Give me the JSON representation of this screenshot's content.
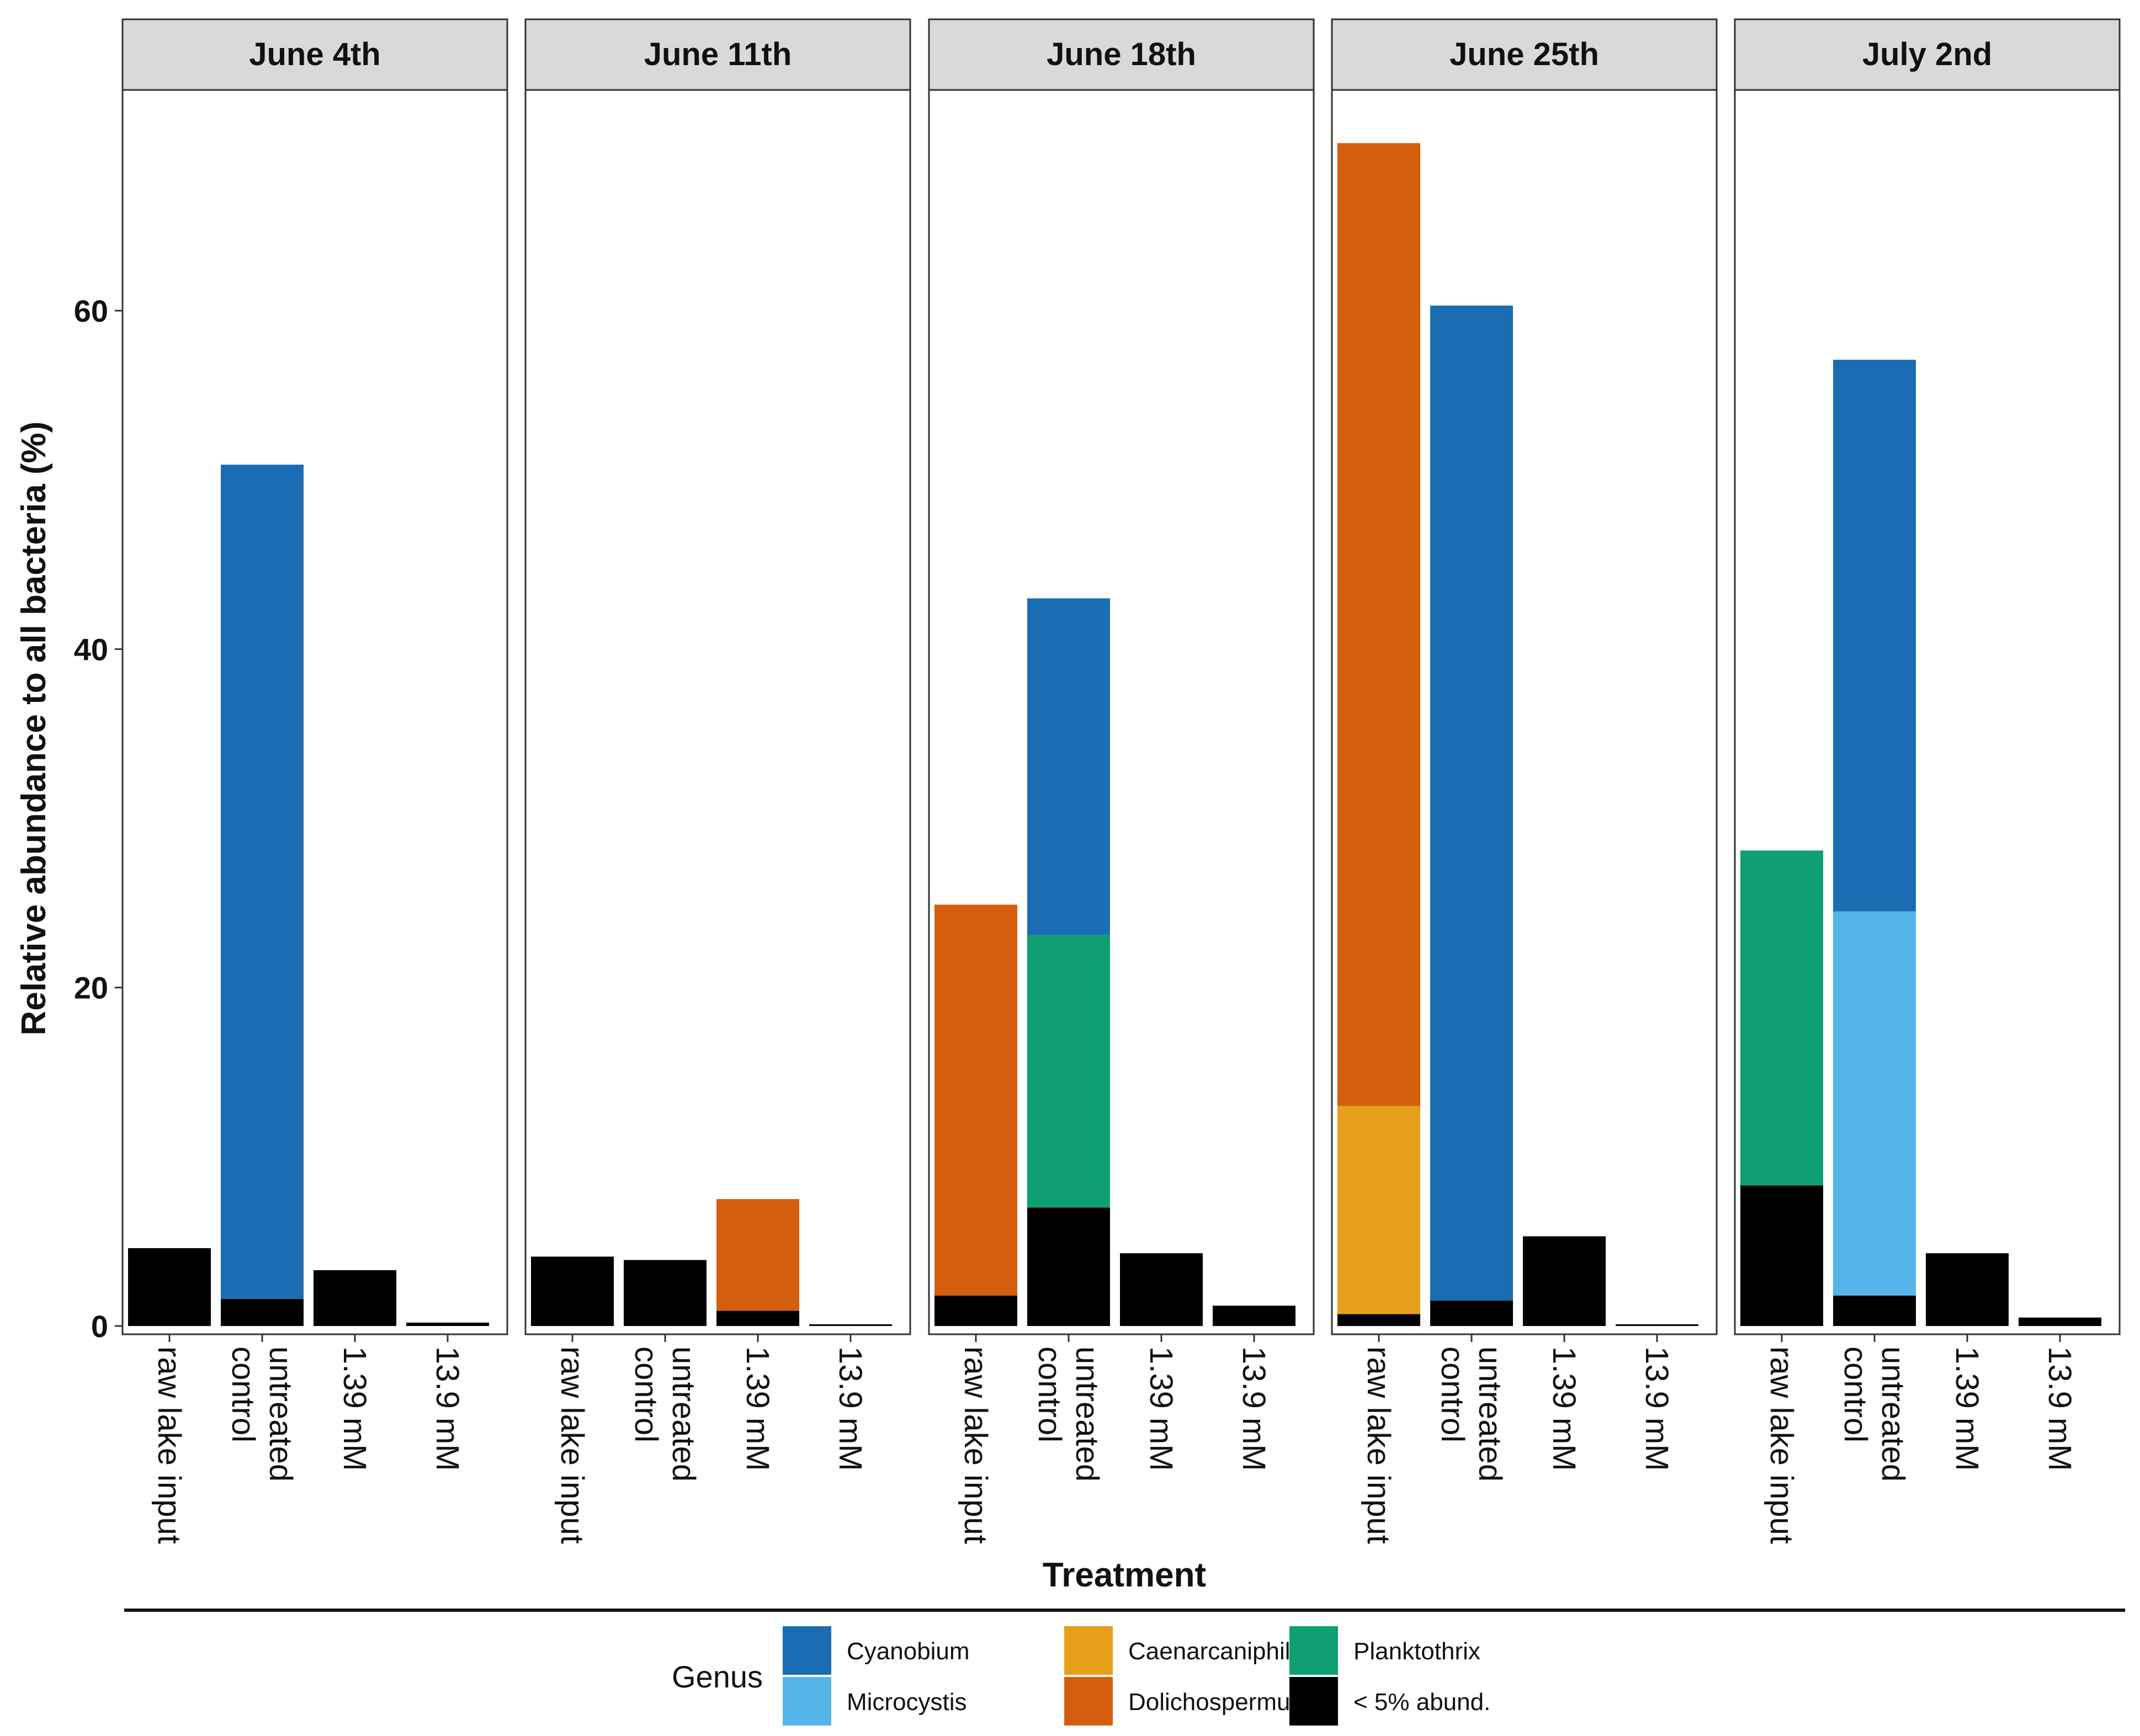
{
  "chart_data": {
    "type": "bar",
    "stacked": true,
    "title": "",
    "xlabel": "Treatment",
    "ylabel": "Relative abundance to all bacteria (%)",
    "ylim": [
      0,
      70
    ],
    "yticks": [
      0,
      20,
      40,
      60
    ],
    "panels": [
      "June 4th",
      "June 11th",
      "June 18th",
      "June 25th",
      "July 2nd"
    ],
    "categories": [
      "raw lake input",
      "untreated control",
      "1.39 mM",
      "13.9 mM"
    ],
    "legend": {
      "title": "Genus",
      "position": "bottom",
      "entries": [
        {
          "name": "Cyanobium",
          "color": "#1B6DB3"
        },
        {
          "name": "Microcystis",
          "color": "#55B5E8"
        },
        {
          "name": "Caenarcaniphilales",
          "color": "#E69F18"
        },
        {
          "name": "Dolichospermum",
          "color": "#D45E0E"
        },
        {
          "name": "Planktothrix",
          "color": "#0E9F74"
        },
        {
          "name": "< 5% abund.",
          "color": "#000000"
        }
      ]
    },
    "series": [
      {
        "name": "< 5% abund.",
        "color": "#000000",
        "values": [
          [
            4.6,
            1.6,
            3.3,
            0.2
          ],
          [
            4.1,
            3.9,
            0.9,
            0.1
          ],
          [
            1.8,
            7.0,
            4.3,
            1.2
          ],
          [
            0.7,
            1.5,
            5.3,
            0.1
          ],
          [
            8.3,
            1.8,
            4.3,
            0.5
          ]
        ]
      },
      {
        "name": "Caenarcaniphilales",
        "color": "#E69F18",
        "values": [
          [
            0,
            0,
            0,
            0
          ],
          [
            0,
            0,
            0,
            0
          ],
          [
            0,
            0,
            0,
            0
          ],
          [
            12.3,
            0,
            0,
            0
          ],
          [
            0,
            0,
            0,
            0
          ]
        ]
      },
      {
        "name": "Planktothrix",
        "color": "#0E9F74",
        "values": [
          [
            0,
            0,
            0,
            0
          ],
          [
            0,
            0,
            0,
            0
          ],
          [
            0,
            16.1,
            0,
            0
          ],
          [
            0,
            0,
            0,
            0
          ],
          [
            19.8,
            0,
            0,
            0
          ]
        ]
      },
      {
        "name": "Microcystis",
        "color": "#55B5E8",
        "values": [
          [
            0,
            0,
            0,
            0
          ],
          [
            0,
            0,
            0,
            0
          ],
          [
            0,
            0,
            0,
            0
          ],
          [
            0,
            0,
            0,
            0
          ],
          [
            0,
            22.7,
            0,
            0
          ]
        ]
      },
      {
        "name": "Dolichospermum",
        "color": "#D45E0E",
        "values": [
          [
            0,
            0,
            0,
            0
          ],
          [
            0,
            0,
            6.6,
            0
          ],
          [
            23.1,
            0,
            0,
            0
          ],
          [
            56.9,
            0,
            0,
            0
          ],
          [
            0,
            0,
            0,
            0
          ]
        ]
      },
      {
        "name": "Cyanobium",
        "color": "#1B6DB3",
        "values": [
          [
            0,
            49.3,
            0,
            0
          ],
          [
            0,
            0,
            0,
            0
          ],
          [
            0,
            19.9,
            0,
            0
          ],
          [
            0,
            58.8,
            0,
            0
          ],
          [
            0,
            32.6,
            0,
            0
          ]
        ]
      }
    ]
  }
}
